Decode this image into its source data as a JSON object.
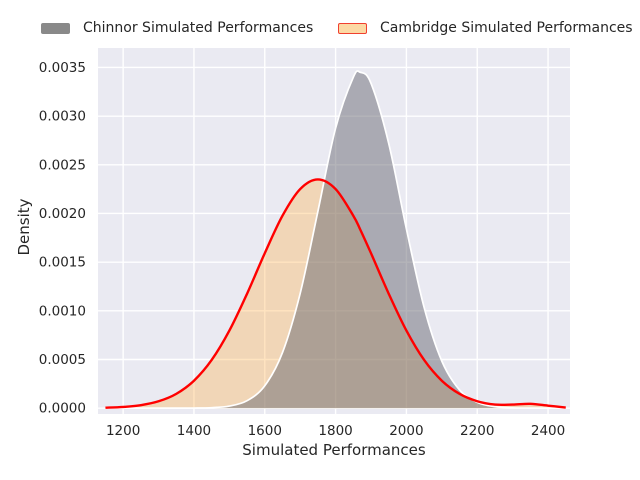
{
  "figure": {
    "background": "#ffffff"
  },
  "legend": {
    "position": "above-plot",
    "items": [
      {
        "swatch_fill": "#898989",
        "swatch_border": "none"
      },
      {
        "swatch_fill": "#fcd9a4",
        "swatch_border": "#f0402f"
      }
    ]
  },
  "chart_data": {
    "type": "area",
    "subtype": "kde-density",
    "title": "",
    "xlabel": "Simulated Performances",
    "ylabel": "Density",
    "xlim": [
      1129,
      2462
    ],
    "ylim": [
      -6e-05,
      0.0037
    ],
    "grid": true,
    "plot_background": "#eaeaf2",
    "grid_color": "#ffffff",
    "tick_color": "#262626",
    "x_ticks": [
      1200,
      1400,
      1600,
      1800,
      2000,
      2200,
      2400
    ],
    "x_tick_labels": [
      "1200",
      "1400",
      "1600",
      "1800",
      "2000",
      "2200",
      "2400"
    ],
    "y_ticks": [
      0.0,
      0.0005,
      0.001,
      0.0015,
      0.002,
      0.0025,
      0.003,
      0.0035
    ],
    "y_tick_labels": [
      "0.0000",
      "0.0005",
      "0.0010",
      "0.0015",
      "0.0020",
      "0.0025",
      "0.0030",
      "0.0035"
    ],
    "x": [
      1150,
      1200,
      1250,
      1300,
      1350,
      1400,
      1450,
      1500,
      1550,
      1600,
      1650,
      1700,
      1750,
      1800,
      1850,
      1870,
      1900,
      1950,
      2000,
      2050,
      2100,
      2150,
      2200,
      2250,
      2300,
      2350,
      2400,
      2450
    ],
    "series": [
      {
        "name": "Chinnor Simulated Performances",
        "fill_color": "rgba(105,105,115,0.5)",
        "line_color": "#ffffff",
        "line_width": 1.7,
        "values": [
          0,
          0,
          0,
          0,
          2e-07,
          9e-07,
          4.9e-06,
          2.13e-05,
          7.68e-05,
          0.00023,
          0.000571,
          0.001179,
          0.002021,
          0.002876,
          0.003399,
          0.00345,
          0.003337,
          0.00272,
          0.001841,
          0.001035,
          0.000483,
          0.000187,
          6e-05,
          1.6e-05,
          3.6e-06,
          7e-07,
          0,
          0
        ]
      },
      {
        "name": "Cambridge Simulated Performances",
        "fill_color": "rgba(255,178,74,0.35)",
        "line_color": "#ff0000",
        "line_width": 2.4,
        "values": [
          4.6e-06,
          1.25e-05,
          3.11e-05,
          7.08e-05,
          0.000147,
          0.000282,
          0.000495,
          0.000797,
          0.001176,
          0.001592,
          0.001977,
          0.002251,
          0.00235,
          0.002251,
          0.001977,
          0.001832,
          0.001592,
          0.001176,
          0.000797,
          0.000495,
          0.000282,
          0.000147,
          7.12e-05,
          3.65e-05,
          3.68e-05,
          4.46e-05,
          2.59e-05,
          5.6e-06
        ]
      }
    ]
  }
}
